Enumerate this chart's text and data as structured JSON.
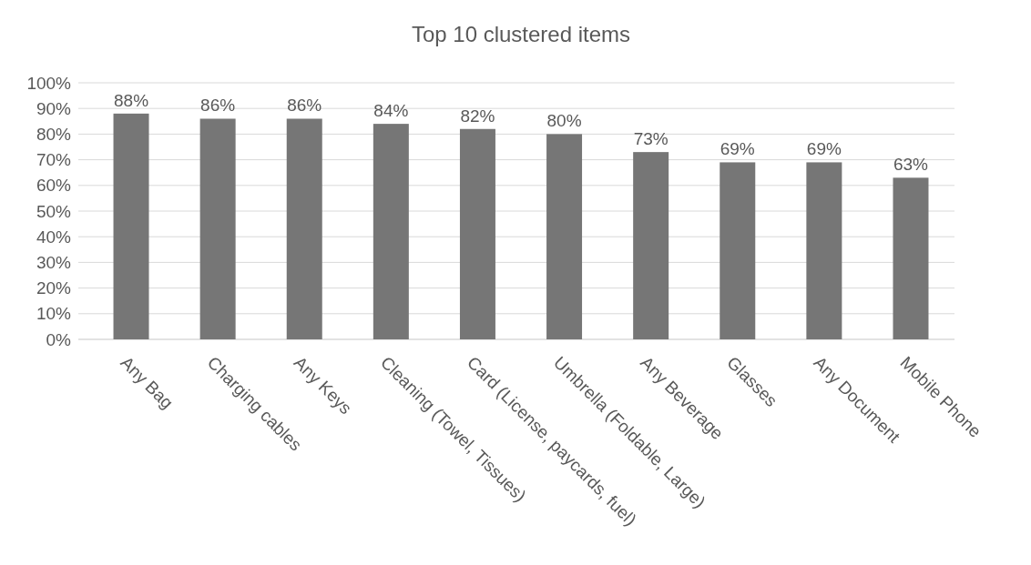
{
  "chart_data": {
    "type": "bar",
    "title": "Top 10 clustered items",
    "categories": [
      "Any Bag",
      "Charging cables",
      "Any Keys",
      "Cleaning (Towel, Tissues)",
      "Card (License, paycards, fuel)",
      "Umbrella (Foldable, Large)",
      "Any Beverage",
      "Glasses",
      "Any Document",
      "Mobile Phone"
    ],
    "values": [
      88,
      86,
      86,
      84,
      82,
      80,
      73,
      69,
      69,
      63
    ],
    "value_labels": [
      "88%",
      "86%",
      "86%",
      "84%",
      "82%",
      "80%",
      "73%",
      "69%",
      "69%",
      "63%"
    ],
    "color": "#767676",
    "ylim": [
      0,
      100
    ],
    "yticks": [
      {
        "value": 0,
        "label": "0%"
      },
      {
        "value": 10,
        "label": "10%"
      },
      {
        "value": 20,
        "label": "20%"
      },
      {
        "value": 30,
        "label": "30%"
      },
      {
        "value": 40,
        "label": "40%"
      },
      {
        "value": 50,
        "label": "50%"
      },
      {
        "value": 60,
        "label": "60%"
      },
      {
        "value": 70,
        "label": "70%"
      },
      {
        "value": 80,
        "label": "80%"
      },
      {
        "value": 90,
        "label": "90%"
      },
      {
        "value": 100,
        "label": "100%"
      }
    ],
    "grid": "y"
  }
}
